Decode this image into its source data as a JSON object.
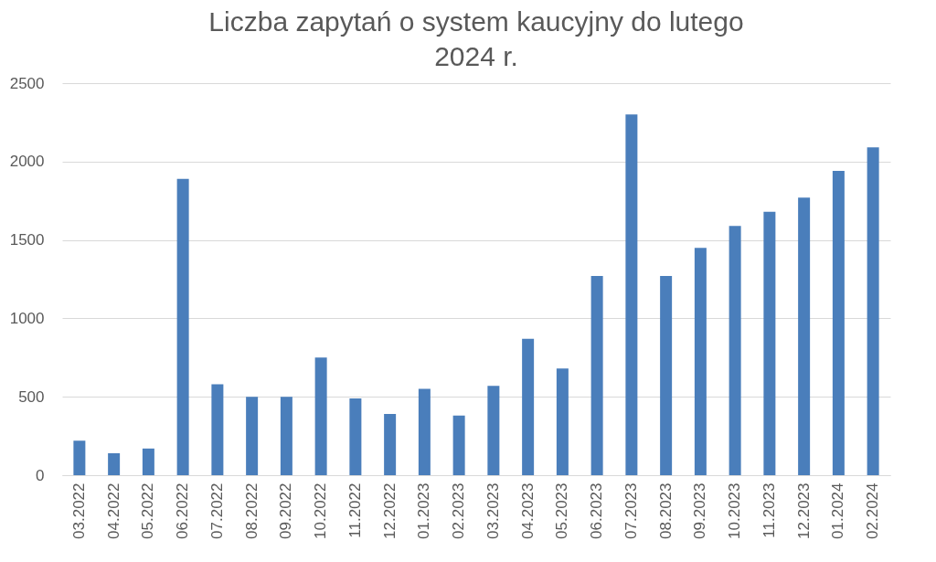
{
  "chart_data": {
    "type": "bar",
    "title": "Liczba zapytań o system kaucyjny do lutego 2024 r.",
    "categories": [
      "03.2022",
      "04.2022",
      "05.2022",
      "06.2022",
      "07.2022",
      "08.2022",
      "09.2022",
      "10.2022",
      "11.2022",
      "12.2022",
      "01.2023",
      "02.2023",
      "03.2023",
      "04.2023",
      "05.2023",
      "06.2023",
      "07.2023",
      "08.2023",
      "09.2023",
      "10.2023",
      "11.2023",
      "12.2023",
      "01.2024",
      "02.2024"
    ],
    "values": [
      220,
      140,
      170,
      1890,
      580,
      500,
      500,
      750,
      490,
      390,
      550,
      380,
      570,
      870,
      680,
      1270,
      2300,
      1270,
      1450,
      1590,
      1680,
      1770,
      1940,
      2090
    ],
    "color": "#4a7ebb",
    "ylim": [
      0,
      2500
    ],
    "yticks": [
      0,
      500,
      1000,
      1500,
      2000,
      2500
    ],
    "grid": "y"
  }
}
